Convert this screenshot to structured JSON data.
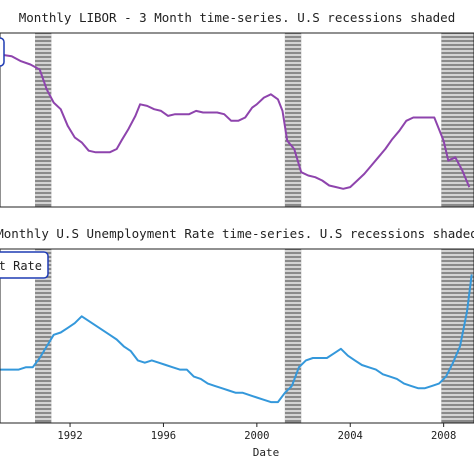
{
  "chart_data": [
    {
      "type": "line",
      "title": "Monthly LIBOR - 3 Month time-series. U.S recessions shaded",
      "xlabel": "",
      "ylabel": "",
      "xlim": [
        1989.0,
        2009.3
      ],
      "ylim": [
        0.0,
        10.5
      ],
      "grid": false,
      "legend": "top-left",
      "recessions": [
        [
          1990.5,
          1991.2
        ],
        [
          2001.2,
          2001.9
        ],
        [
          2007.9,
          2009.5
        ]
      ],
      "series": [
        {
          "name": "",
          "color": "#8e44ad",
          "x": [
            1989.0,
            1989.5,
            1989.9,
            1990.3,
            1990.7,
            1991.0,
            1991.3,
            1991.6,
            1991.9,
            1992.2,
            1992.5,
            1992.8,
            1993.1,
            1993.4,
            1993.7,
            1994.0,
            1994.2,
            1994.5,
            1994.8,
            1995.0,
            1995.3,
            1995.6,
            1995.9,
            1996.2,
            1996.5,
            1996.8,
            1997.1,
            1997.4,
            1997.7,
            1998.0,
            1998.3,
            1998.6,
            1998.9,
            1999.2,
            1999.5,
            1999.8,
            2000.0,
            2000.3,
            2000.6,
            2000.9,
            2001.1,
            2001.3,
            2001.6,
            2001.9,
            2002.2,
            2002.5,
            2002.8,
            2003.1,
            2003.4,
            2003.7,
            2004.0,
            2004.3,
            2004.6,
            2004.9,
            2005.2,
            2005.5,
            2005.8,
            2006.1,
            2006.4,
            2006.7,
            2007.0,
            2007.3,
            2007.6,
            2008.0,
            2008.2,
            2008.5,
            2008.8,
            2009.1
          ],
          "y": [
            9.2,
            9.1,
            8.8,
            8.6,
            8.3,
            7.1,
            6.3,
            5.9,
            4.9,
            4.2,
            3.9,
            3.4,
            3.3,
            3.3,
            3.3,
            3.5,
            4.0,
            4.7,
            5.5,
            6.2,
            6.1,
            5.9,
            5.8,
            5.5,
            5.6,
            5.6,
            5.6,
            5.8,
            5.7,
            5.7,
            5.7,
            5.6,
            5.2,
            5.2,
            5.4,
            6.0,
            6.2,
            6.6,
            6.8,
            6.5,
            5.8,
            4.0,
            3.5,
            2.1,
            1.9,
            1.8,
            1.6,
            1.3,
            1.2,
            1.1,
            1.2,
            1.6,
            2.0,
            2.5,
            3.0,
            3.5,
            4.1,
            4.6,
            5.2,
            5.4,
            5.4,
            5.4,
            5.4,
            4.0,
            2.8,
            3.0,
            2.2,
            1.2
          ]
        }
      ]
    },
    {
      "type": "line",
      "title": "Monthly U.S Unemployment Rate time-series. U.S recessions shaded",
      "xlabel": "Date",
      "ylabel": "",
      "xlim": [
        1989.0,
        2009.3
      ],
      "ylim": [
        3.0,
        10.5
      ],
      "xticks": [
        "1992",
        "1996",
        "2000",
        "2004",
        "2008"
      ],
      "grid": false,
      "legend": "top-left",
      "legend_label": "U.S Unemployment Rate",
      "recessions": [
        [
          1990.5,
          1991.2
        ],
        [
          2001.2,
          2001.9
        ],
        [
          2007.9,
          2009.5
        ]
      ],
      "series": [
        {
          "name": "U.S Unemployment Rate",
          "color": "#3498db",
          "x": [
            1989.0,
            1989.4,
            1989.8,
            1990.1,
            1990.4,
            1990.7,
            1991.0,
            1991.3,
            1991.6,
            1991.9,
            1992.2,
            1992.5,
            1992.8,
            1993.1,
            1993.4,
            1993.7,
            1994.0,
            1994.3,
            1994.6,
            1994.9,
            1995.2,
            1995.5,
            1995.8,
            1996.1,
            1996.4,
            1996.7,
            1997.0,
            1997.3,
            1997.6,
            1997.9,
            1998.2,
            1998.5,
            1998.8,
            1999.1,
            1999.4,
            1999.7,
            2000.0,
            2000.3,
            2000.6,
            2000.9,
            2001.2,
            2001.5,
            2001.8,
            2002.1,
            2002.4,
            2002.7,
            2003.0,
            2003.3,
            2003.6,
            2003.9,
            2004.2,
            2004.5,
            2004.8,
            2005.1,
            2005.4,
            2005.7,
            2006.0,
            2006.3,
            2006.6,
            2006.9,
            2007.2,
            2007.5,
            2007.8,
            2008.1,
            2008.4,
            2008.7,
            2009.0,
            2009.2
          ],
          "y": [
            5.3,
            5.3,
            5.3,
            5.4,
            5.4,
            5.8,
            6.3,
            6.8,
            6.9,
            7.1,
            7.3,
            7.6,
            7.4,
            7.2,
            7.0,
            6.8,
            6.6,
            6.3,
            6.1,
            5.7,
            5.6,
            5.7,
            5.6,
            5.5,
            5.4,
            5.3,
            5.3,
            5.0,
            4.9,
            4.7,
            4.6,
            4.5,
            4.4,
            4.3,
            4.3,
            4.2,
            4.1,
            4.0,
            3.9,
            3.9,
            4.3,
            4.6,
            5.4,
            5.7,
            5.8,
            5.8,
            5.8,
            6.0,
            6.2,
            5.9,
            5.7,
            5.5,
            5.4,
            5.3,
            5.1,
            5.0,
            4.9,
            4.7,
            4.6,
            4.5,
            4.5,
            4.6,
            4.7,
            5.0,
            5.6,
            6.3,
            7.8,
            9.4
          ]
        }
      ]
    }
  ]
}
